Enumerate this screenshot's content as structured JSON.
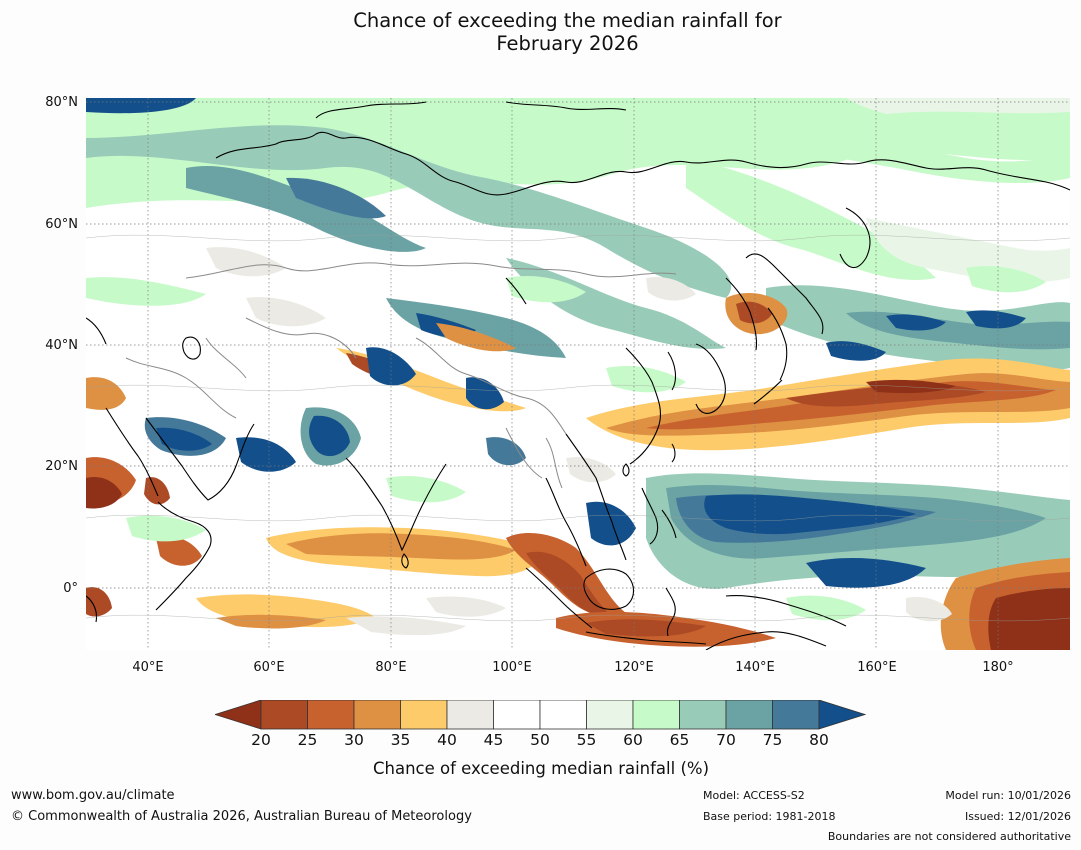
{
  "title_line1": "Chance of exceeding the median rainfall for",
  "title_line2": "February 2026",
  "axes": {
    "lat_labels": [
      "80°N",
      "60°N",
      "40°N",
      "20°N",
      "0°"
    ],
    "lon_labels": [
      "40°E",
      "60°E",
      "80°E",
      "100°E",
      "120°E",
      "140°E",
      "160°E",
      "180°"
    ]
  },
  "colorbar": {
    "label": "Chance of exceeding median rainfall (%)",
    "ticks": [
      "20",
      "25",
      "30",
      "35",
      "40",
      "45",
      "50",
      "55",
      "60",
      "65",
      "70",
      "75",
      "80"
    ],
    "colors": {
      "lt20": "#8e3118",
      "c20_25": "#ad4a26",
      "c25_30": "#c7622f",
      "c30_35": "#de9043",
      "c35_40": "#fecb6a",
      "c40_45": "#ebeae4",
      "c45_55": "#ffffff",
      "c55_60": "#e9f6e7",
      "c60_65": "#c7fac9",
      "c65_70": "#99ccb8",
      "c70_75": "#6ba3a5",
      "c75_80": "#44799a",
      "gt80": "#134f8b"
    }
  },
  "footer": {
    "website": "www.bom.gov.au/climate",
    "copyright": "© Commonwealth of Australia 2026, Australian Bureau of Meteorology",
    "model": "Model: ACCESS-S2",
    "base_period": "Base period: 1981-2018",
    "model_run": "Model run: 10/01/2026",
    "issued": "Issued: 12/01/2026",
    "disclaimer": "Boundaries are not considered authoritative"
  }
}
